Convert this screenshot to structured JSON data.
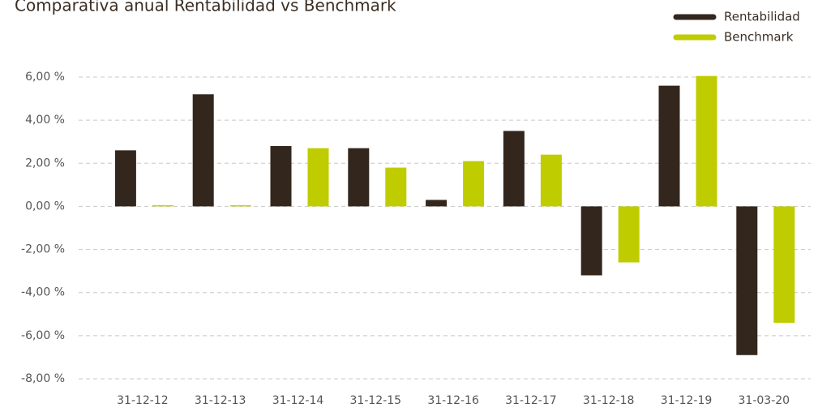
{
  "chart_data": {
    "type": "bar",
    "title": "Comparativa anual Rentabilidad vs Benchmark",
    "categories": [
      "31-12-12",
      "31-12-13",
      "31-12-14",
      "31-12-15",
      "31-12-16",
      "31-12-17",
      "31-12-18",
      "31-12-19",
      "31-03-20"
    ],
    "series": [
      {
        "name": "Rentabilidad",
        "color": "#33261c",
        "values": [
          2.6,
          5.2,
          2.8,
          2.7,
          0.3,
          3.5,
          -3.2,
          5.6,
          -6.9
        ]
      },
      {
        "name": "Benchmark",
        "color": "#bfcc00",
        "values": [
          0.05,
          0.05,
          2.7,
          1.8,
          2.1,
          2.4,
          -2.6,
          6.05,
          -5.4
        ]
      }
    ],
    "ylim": [
      -8,
      6.3
    ],
    "yticks": [
      {
        "value": 6,
        "label": "6,00 %"
      },
      {
        "value": 4,
        "label": "4,00 %"
      },
      {
        "value": 2,
        "label": "2,00 %"
      },
      {
        "value": 0,
        "label": "0,00 %"
      },
      {
        "value": -2,
        "label": "-2,00 %"
      },
      {
        "value": -4,
        "label": "-4,00 %"
      },
      {
        "value": -6,
        "label": "-6,00 %"
      },
      {
        "value": -8,
        "label": "-8,00 %"
      }
    ],
    "grid": true,
    "legend": "top-right"
  }
}
